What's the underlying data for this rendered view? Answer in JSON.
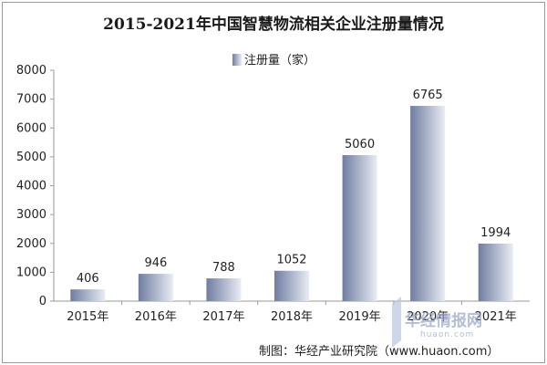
{
  "chart_data": {
    "type": "bar",
    "title": "2015-2021年中国智慧物流相关企业注册量情况",
    "categories": [
      "2015年",
      "2016年",
      "2017年",
      "2018年",
      "2019年",
      "2020年",
      "2021年"
    ],
    "series": [
      {
        "name": "注册量（家）",
        "values": [
          406,
          946,
          788,
          1052,
          5060,
          6765,
          1994
        ]
      }
    ],
    "ylim": [
      0,
      8000
    ],
    "yticks": [
      0,
      1000,
      2000,
      3000,
      4000,
      5000,
      6000,
      7000,
      8000
    ],
    "grid": false,
    "legend_position": "top-center",
    "data_labels": true,
    "colors": {
      "bar_dark": "#6f7da1",
      "bar_light": "#e9ecf4",
      "axis": "#9a9a9a"
    }
  },
  "source": "制图：华经产业研究院（www.huaon.com）",
  "watermark": {
    "brand": "华经情报网",
    "url": "huaon.com"
  }
}
